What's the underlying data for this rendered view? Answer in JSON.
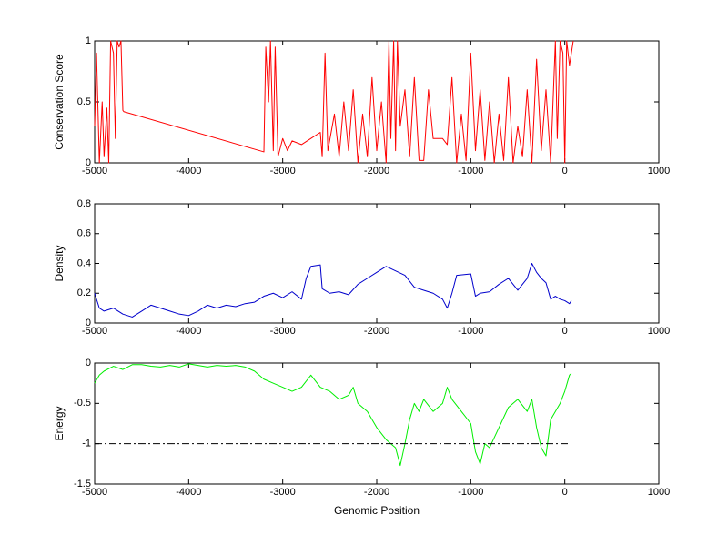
{
  "chart_data": [
    {
      "type": "line",
      "ylabel": "Conservation Score",
      "xlim": [
        -5000,
        1000
      ],
      "xticks": [
        -5000,
        -4000,
        -3000,
        -2000,
        -1000,
        0,
        1000
      ],
      "ylim": [
        0,
        1
      ],
      "yticks": [
        0,
        0.5,
        1
      ],
      "series": [
        {
          "color": "#ff0000",
          "x": [
            -5000,
            -4980,
            -4950,
            -4920,
            -4900,
            -4870,
            -4850,
            -4830,
            -4800,
            -4780,
            -4760,
            -4740,
            -4720,
            -4700,
            -4690,
            -3200,
            -3180,
            -3150,
            -3130,
            -3100,
            -3080,
            -3050,
            -3000,
            -2950,
            -2900,
            -2800,
            -2700,
            -2600,
            -2580,
            -2550,
            -2520,
            -2450,
            -2400,
            -2350,
            -2300,
            -2250,
            -2200,
            -2150,
            -2100,
            -2050,
            -2000,
            -1950,
            -1900,
            -1870,
            -1850,
            -1820,
            -1800,
            -1780,
            -1750,
            -1700,
            -1650,
            -1600,
            -1550,
            -1500,
            -1450,
            -1400,
            -1300,
            -1250,
            -1200,
            -1150,
            -1100,
            -1050,
            -1000,
            -950,
            -900,
            -850,
            -800,
            -750,
            -700,
            -650,
            -600,
            -550,
            -500,
            -450,
            -400,
            -350,
            -300,
            -250,
            -200,
            -150,
            -100,
            -80,
            -50,
            -20,
            0,
            20,
            50,
            80,
            90
          ],
          "values": [
            0.3,
            0.9,
            0,
            0.5,
            0.05,
            0.45,
            0,
            1,
            0.9,
            0.2,
            1,
            0.95,
            1,
            0.43,
            0.42,
            0.09,
            0.95,
            0.5,
            1,
            0.1,
            0.95,
            0.05,
            0.2,
            0.1,
            0.18,
            0.15,
            0.2,
            0.25,
            0.05,
            0.9,
            0.1,
            0.4,
            0.05,
            0.5,
            0.1,
            0.6,
            0,
            0.4,
            0.05,
            0.7,
            0.1,
            0.5,
            0,
            1,
            0.2,
            1,
            0.1,
            1,
            0.3,
            0.6,
            0.05,
            0.7,
            0.02,
            0.02,
            0.6,
            0.2,
            0.2,
            0.15,
            0.7,
            0,
            0.4,
            0.02,
            0.9,
            0.1,
            0.6,
            0.02,
            0.5,
            0,
            0.4,
            0.02,
            0.7,
            0,
            0.3,
            0.05,
            0.6,
            0,
            0.85,
            0.1,
            0.6,
            0,
            1,
            0.2,
            1,
            0.9,
            0,
            1,
            0.8,
            0.95,
            1
          ]
        }
      ]
    },
    {
      "type": "line",
      "ylabel": "Density",
      "xlim": [
        -5000,
        1000
      ],
      "xticks": [
        -5000,
        -4000,
        -3000,
        -2000,
        -1000,
        0,
        1000
      ],
      "ylim": [
        0,
        0.8
      ],
      "yticks": [
        0,
        0.2,
        0.4,
        0.6,
        0.8
      ],
      "series": [
        {
          "color": "#0000cc",
          "x": [
            -5000,
            -4950,
            -4900,
            -4800,
            -4700,
            -4600,
            -4500,
            -4400,
            -4300,
            -4200,
            -4100,
            -4000,
            -3900,
            -3800,
            -3700,
            -3600,
            -3500,
            -3400,
            -3300,
            -3200,
            -3100,
            -3000,
            -2900,
            -2800,
            -2750,
            -2700,
            -2600,
            -2580,
            -2500,
            -2400,
            -2300,
            -2200,
            -2100,
            -2000,
            -1900,
            -1800,
            -1700,
            -1600,
            -1500,
            -1400,
            -1300,
            -1250,
            -1200,
            -1150,
            -1000,
            -950,
            -900,
            -800,
            -700,
            -600,
            -500,
            -400,
            -350,
            -300,
            -250,
            -200,
            -150,
            -100,
            -50,
            0,
            50,
            70
          ],
          "values": [
            0.2,
            0.1,
            0.08,
            0.1,
            0.06,
            0.04,
            0.08,
            0.12,
            0.1,
            0.08,
            0.06,
            0.05,
            0.08,
            0.12,
            0.1,
            0.12,
            0.11,
            0.13,
            0.14,
            0.18,
            0.2,
            0.17,
            0.21,
            0.16,
            0.3,
            0.38,
            0.39,
            0.23,
            0.2,
            0.21,
            0.19,
            0.26,
            0.3,
            0.34,
            0.38,
            0.35,
            0.32,
            0.24,
            0.22,
            0.2,
            0.16,
            0.1,
            0.2,
            0.32,
            0.33,
            0.18,
            0.2,
            0.21,
            0.26,
            0.3,
            0.22,
            0.3,
            0.4,
            0.34,
            0.3,
            0.27,
            0.16,
            0.18,
            0.16,
            0.15,
            0.13,
            0.15
          ]
        }
      ]
    },
    {
      "type": "line",
      "ylabel": "Energy",
      "xlabel": "Genomic Position",
      "xlim": [
        -5000,
        1000
      ],
      "xticks": [
        -5000,
        -4000,
        -3000,
        -2000,
        -1000,
        0,
        1000
      ],
      "ylim": [
        -1.5,
        0
      ],
      "yticks": [
        -1.5,
        -1,
        -0.5,
        0
      ],
      "series": [
        {
          "color": "#00ee00",
          "x": [
            -5000,
            -4950,
            -4900,
            -4800,
            -4700,
            -4600,
            -4500,
            -4400,
            -4300,
            -4200,
            -4100,
            -4000,
            -3900,
            -3800,
            -3700,
            -3600,
            -3500,
            -3400,
            -3300,
            -3200,
            -3100,
            -3000,
            -2900,
            -2800,
            -2700,
            -2600,
            -2500,
            -2400,
            -2300,
            -2250,
            -2200,
            -2100,
            -2000,
            -1900,
            -1800,
            -1750,
            -1700,
            -1650,
            -1600,
            -1550,
            -1500,
            -1400,
            -1300,
            -1250,
            -1200,
            -1100,
            -1000,
            -950,
            -900,
            -850,
            -800,
            -700,
            -600,
            -500,
            -400,
            -350,
            -300,
            -250,
            -200,
            -150,
            -100,
            -50,
            0,
            50,
            70
          ],
          "values": [
            -0.25,
            -0.15,
            -0.1,
            -0.04,
            -0.08,
            -0.02,
            -0.02,
            -0.04,
            -0.05,
            -0.03,
            -0.05,
            -0.01,
            -0.03,
            -0.05,
            -0.03,
            -0.04,
            -0.03,
            -0.05,
            -0.1,
            -0.2,
            -0.25,
            -0.3,
            -0.35,
            -0.3,
            -0.15,
            -0.3,
            -0.35,
            -0.45,
            -0.4,
            -0.3,
            -0.5,
            -0.6,
            -0.8,
            -0.95,
            -1.05,
            -1.27,
            -1.0,
            -0.7,
            -0.5,
            -0.6,
            -0.45,
            -0.6,
            -0.5,
            -0.3,
            -0.45,
            -0.6,
            -0.75,
            -1.1,
            -1.25,
            -1.0,
            -1.05,
            -0.8,
            -0.55,
            -0.45,
            -0.6,
            -0.45,
            -0.8,
            -1.05,
            -1.15,
            -0.7,
            -0.6,
            -0.5,
            -0.35,
            -0.15,
            -0.13
          ]
        },
        {
          "color": "#000000",
          "dash": "dash-dot",
          "x": [
            -5000,
            50
          ],
          "values": [
            -1,
            -1
          ]
        }
      ]
    }
  ]
}
